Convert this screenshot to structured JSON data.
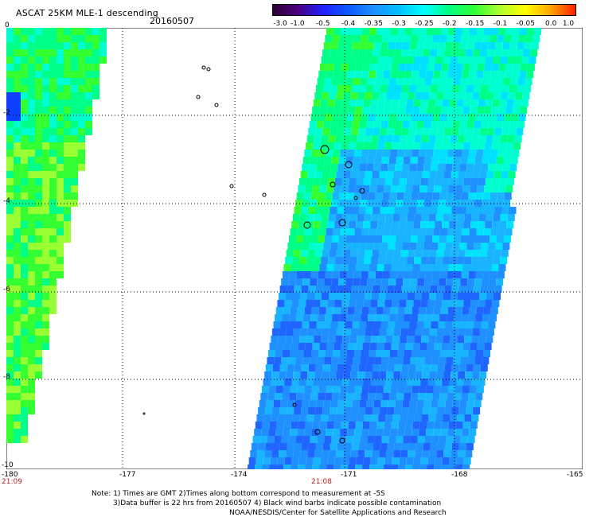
{
  "header": {
    "title": "ASCAT 25KM MLE-1 descending",
    "date": "20160507"
  },
  "colorbar": {
    "labels": [
      "-3.0",
      "-1.0",
      "-0.5",
      "-0.4",
      "-0.35",
      "-0.3",
      "-0.25",
      "-0.2",
      "-0.15",
      "-0.1",
      "-0.05",
      "0.0",
      "1.0"
    ],
    "colors": [
      "#2a0032",
      "#4b0082",
      "#2020ff",
      "#0a5aff",
      "#1e90ff",
      "#00bfff",
      "#00ffff",
      "#00ff7f",
      "#32ff32",
      "#adff2f",
      "#ffff00",
      "#ffa500",
      "#ff2000"
    ]
  },
  "axes": {
    "x_ticks": [
      "-180",
      "-177",
      "-174",
      "-171",
      "-168",
      "-165"
    ],
    "y_ticks": [
      "0",
      "-2",
      "-4",
      "-6",
      "-8",
      "-10"
    ]
  },
  "times": {
    "left": "21:09",
    "right": "21:08"
  },
  "notes": {
    "line1": "Note: 1) Times are GMT 2)Times along bottom correspond to measurement at -5S",
    "line2": "3)Data buffer is 22 hrs from 20160507 4) Black wind barbs indicate possible contamination",
    "credit": "NOAA/NESDIS/Center for Satellite Applications and Research"
  }
}
